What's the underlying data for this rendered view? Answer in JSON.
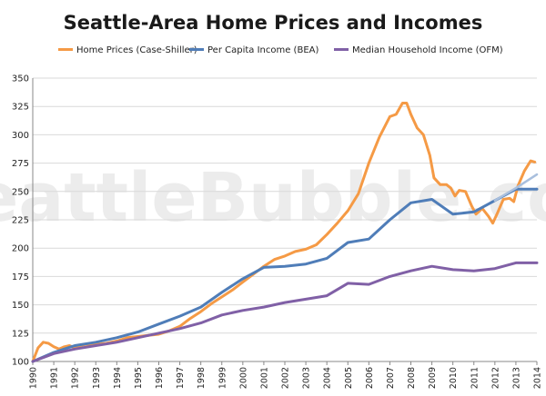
{
  "watermark": "SeattleBubble.com",
  "colors": {
    "home_prices": "#F59A45",
    "per_capita": "#4F7DB8",
    "per_capita_extension": "#A9BFDD",
    "median_household": "#8060A6",
    "grid": "#d9d9d9",
    "axis": "#888888"
  },
  "chart_data": {
    "type": "line",
    "title": "Seattle-Area Home Prices and Incomes",
    "xlabel": "",
    "ylabel": "",
    "xlim": [
      1990,
      2014
    ],
    "ylim": [
      100,
      350
    ],
    "y_ticks": [
      100,
      125,
      150,
      175,
      200,
      225,
      250,
      275,
      300,
      325,
      350
    ],
    "x_ticks": [
      "1990",
      "1991",
      "1992",
      "1993",
      "1994",
      "1995",
      "1996",
      "1997",
      "1998",
      "1999",
      "2000",
      "2001",
      "2002",
      "2003",
      "2004",
      "2005",
      "2006",
      "2007",
      "2008",
      "2009",
      "2010",
      "2011",
      "2012",
      "2013",
      "2014"
    ],
    "grid": "horizontal",
    "legend_position": "top",
    "series": [
      {
        "name": "Home Prices (Case-Shiller)",
        "color_key": "home_prices",
        "points": [
          [
            1990.0,
            100
          ],
          [
            1990.25,
            112
          ],
          [
            1990.5,
            117
          ],
          [
            1990.75,
            116
          ],
          [
            1991.0,
            113
          ],
          [
            1991.25,
            111
          ],
          [
            1991.5,
            113
          ],
          [
            1991.75,
            114
          ],
          [
            1992.0,
            112
          ],
          [
            1992.25,
            114
          ],
          [
            1992.5,
            115
          ],
          [
            1992.75,
            115
          ],
          [
            1993.0,
            115
          ],
          [
            1993.5,
            116
          ],
          [
            1994.0,
            118
          ],
          [
            1994.5,
            121
          ],
          [
            1995.0,
            122
          ],
          [
            1995.5,
            123
          ],
          [
            1996.0,
            124
          ],
          [
            1996.5,
            127
          ],
          [
            1997.0,
            131
          ],
          [
            1997.5,
            138
          ],
          [
            1998.0,
            144
          ],
          [
            1998.5,
            151
          ],
          [
            1999.0,
            157
          ],
          [
            1999.5,
            163
          ],
          [
            2000.0,
            170
          ],
          [
            2000.5,
            177
          ],
          [
            2001.0,
            184
          ],
          [
            2001.5,
            190
          ],
          [
            2002.0,
            193
          ],
          [
            2002.5,
            197
          ],
          [
            2003.0,
            199
          ],
          [
            2003.5,
            203
          ],
          [
            2004.0,
            212
          ],
          [
            2004.5,
            222
          ],
          [
            2005.0,
            233
          ],
          [
            2005.5,
            248
          ],
          [
            2006.0,
            275
          ],
          [
            2006.5,
            298
          ],
          [
            2007.0,
            316
          ],
          [
            2007.3,
            318
          ],
          [
            2007.6,
            328
          ],
          [
            2007.8,
            328
          ],
          [
            2008.0,
            318
          ],
          [
            2008.3,
            306
          ],
          [
            2008.6,
            300
          ],
          [
            2008.9,
            282
          ],
          [
            2009.1,
            262
          ],
          [
            2009.4,
            256
          ],
          [
            2009.7,
            256
          ],
          [
            2009.9,
            253
          ],
          [
            2010.1,
            246
          ],
          [
            2010.3,
            251
          ],
          [
            2010.6,
            250
          ],
          [
            2010.9,
            237
          ],
          [
            2011.1,
            230
          ],
          [
            2011.4,
            235
          ],
          [
            2011.7,
            228
          ],
          [
            2011.9,
            222
          ],
          [
            2012.1,
            230
          ],
          [
            2012.4,
            243
          ],
          [
            2012.7,
            244
          ],
          [
            2012.9,
            241
          ],
          [
            2013.1,
            255
          ],
          [
            2013.4,
            268
          ],
          [
            2013.7,
            277
          ],
          [
            2013.9,
            276
          ]
        ]
      },
      {
        "name": "Per Capita Income (BEA)",
        "color_key": "per_capita",
        "points": [
          [
            1990,
            100
          ],
          [
            1991,
            108
          ],
          [
            1992,
            114
          ],
          [
            1993,
            117
          ],
          [
            1994,
            121
          ],
          [
            1995,
            126
          ],
          [
            1996,
            133
          ],
          [
            1997,
            140
          ],
          [
            1998,
            148
          ],
          [
            1999,
            161
          ],
          [
            2000,
            173
          ],
          [
            2001,
            183
          ],
          [
            2002,
            184
          ],
          [
            2003,
            186
          ],
          [
            2004,
            191
          ],
          [
            2005,
            205
          ],
          [
            2006,
            208
          ],
          [
            2007,
            225
          ],
          [
            2008,
            240
          ],
          [
            2009,
            243
          ],
          [
            2010,
            230
          ],
          [
            2011,
            232
          ],
          [
            2012,
            242
          ],
          [
            2013,
            252
          ],
          [
            2014,
            252
          ]
        ]
      },
      {
        "name": "",
        "color_key": "per_capita_extension",
        "points": [
          [
            2012,
            242
          ],
          [
            2013,
            253
          ],
          [
            2014,
            265
          ]
        ]
      },
      {
        "name": "Median Household Income (OFM)",
        "color_key": "median_household",
        "points": [
          [
            1990,
            100
          ],
          [
            1991,
            107
          ],
          [
            1992,
            111
          ],
          [
            1993,
            114
          ],
          [
            1994,
            117
          ],
          [
            1995,
            121
          ],
          [
            1996,
            125
          ],
          [
            1997,
            129
          ],
          [
            1998,
            134
          ],
          [
            1999,
            141
          ],
          [
            2000,
            145
          ],
          [
            2001,
            148
          ],
          [
            2002,
            152
          ],
          [
            2003,
            155
          ],
          [
            2004,
            158
          ],
          [
            2005,
            169
          ],
          [
            2006,
            168
          ],
          [
            2007,
            175
          ],
          [
            2008,
            180
          ],
          [
            2009,
            184
          ],
          [
            2010,
            181
          ],
          [
            2011,
            180
          ],
          [
            2012,
            182
          ],
          [
            2013,
            187
          ],
          [
            2014,
            187
          ]
        ]
      }
    ]
  }
}
